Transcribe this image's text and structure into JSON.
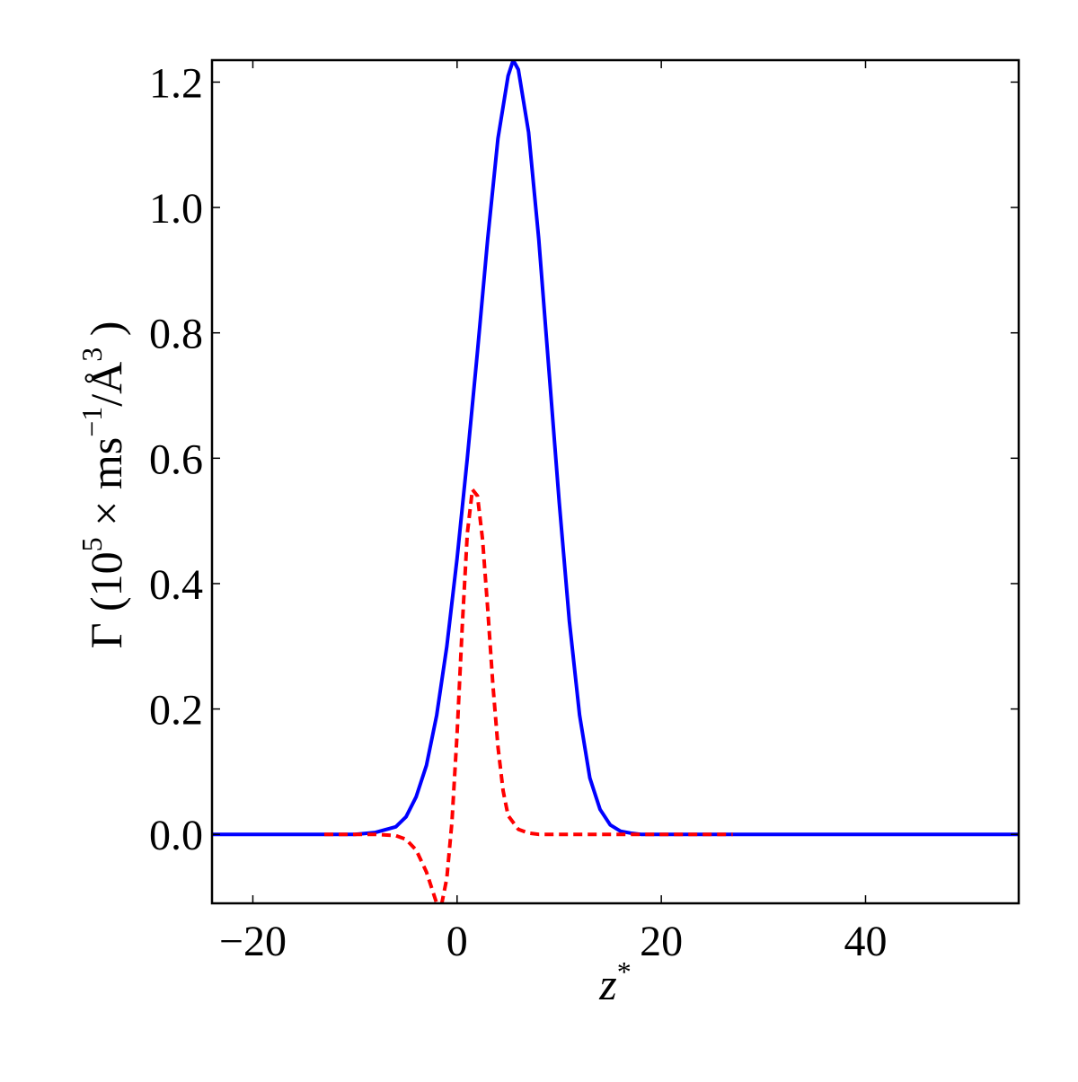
{
  "chart_data": {
    "type": "line",
    "xlabel": {
      "base": "z",
      "sup": "*"
    },
    "ylabel": {
      "p1": "Γ (10",
      "s1": "5",
      "p2": " × ms",
      "s2": "−1",
      "p3": "/Å",
      "s3": "3",
      "p4": " )"
    },
    "xlim": [
      -24,
      55
    ],
    "ylim": [
      -0.11,
      1.235
    ],
    "x_ticks": [
      -20,
      0,
      20,
      40
    ],
    "x_tick_labels": [
      "−20",
      "0",
      "20",
      "40"
    ],
    "y_ticks": [
      0.0,
      0.2,
      0.4,
      0.6,
      0.8,
      1.0,
      1.2
    ],
    "y_tick_labels": [
      "0.0",
      "0.2",
      "0.4",
      "0.6",
      "0.8",
      "1.0",
      "1.2"
    ],
    "grid": false,
    "series": [
      {
        "color": "#0000ff",
        "style": "solid",
        "x": [
          -24,
          -10,
          -8,
          -6,
          -5,
          -4,
          -3,
          -2,
          -1,
          0,
          1,
          2,
          3,
          4,
          5,
          5.5,
          6,
          7,
          8,
          9,
          10,
          11,
          12,
          13,
          14,
          15,
          16,
          17,
          18,
          20,
          25,
          40,
          55
        ],
        "y": [
          0,
          0,
          0.003,
          0.012,
          0.028,
          0.06,
          0.11,
          0.19,
          0.3,
          0.44,
          0.6,
          0.77,
          0.95,
          1.11,
          1.21,
          1.235,
          1.22,
          1.12,
          0.95,
          0.74,
          0.53,
          0.34,
          0.19,
          0.09,
          0.04,
          0.015,
          0.005,
          0.002,
          0,
          0,
          0,
          0,
          0
        ]
      },
      {
        "color": "#ff0000",
        "style": "dashed",
        "x": [
          -13,
          -8,
          -6,
          -5,
          -4,
          -3,
          -2.5,
          -2,
          -1.5,
          -1,
          -0.5,
          0,
          0.5,
          1,
          1.5,
          2,
          2.5,
          3,
          3.5,
          4,
          4.5,
          5,
          6,
          7,
          8,
          10,
          15,
          27
        ],
        "y": [
          0,
          0,
          -0.002,
          -0.008,
          -0.025,
          -0.06,
          -0.085,
          -0.11,
          -0.11,
          -0.07,
          0.02,
          0.16,
          0.33,
          0.48,
          0.55,
          0.54,
          0.47,
          0.36,
          0.24,
          0.14,
          0.07,
          0.03,
          0.008,
          0.002,
          0,
          0,
          0,
          0
        ]
      }
    ]
  }
}
